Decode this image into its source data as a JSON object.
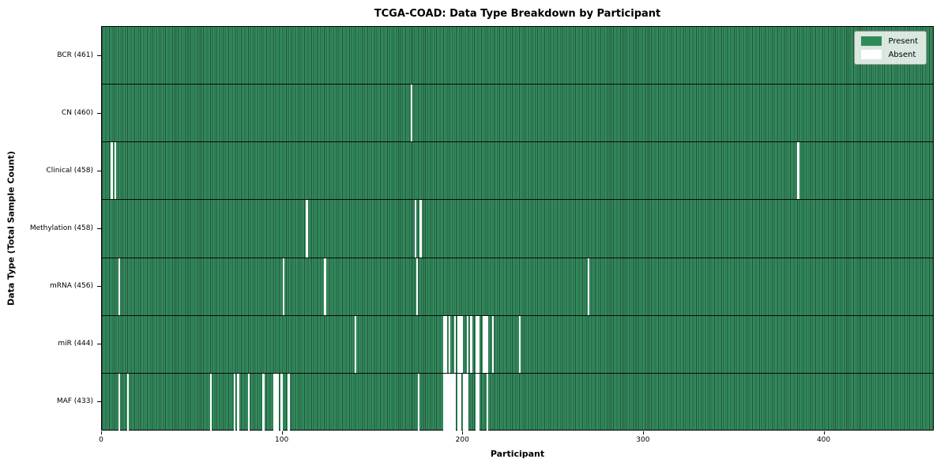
{
  "chart_data": {
    "type": "heatmap",
    "title": "TCGA-COAD: Data Type Breakdown by Participant",
    "xlabel": "Participant",
    "ylabel": "Data Type (Total Sample Count)",
    "x_ticks": [
      0,
      100,
      200,
      300,
      400
    ],
    "x_range": [
      0,
      461
    ],
    "n_participants": 461,
    "legend": [
      {
        "label": "Present",
        "color": "#2e8b57"
      },
      {
        "label": "Absent",
        "color": "#ffffff"
      }
    ],
    "legend_position": "upper right",
    "grid": false,
    "rows": [
      {
        "label": "BCR (461)",
        "data_type": "BCR",
        "total_samples": 461,
        "absent_participants": []
      },
      {
        "label": "CN (460)",
        "data_type": "CN",
        "total_samples": 460,
        "absent_participants": [
          171
        ]
      },
      {
        "label": "Clinical (458)",
        "data_type": "Clinical",
        "total_samples": 458,
        "absent_participants": [
          5,
          7,
          385
        ]
      },
      {
        "label": "Methylation (458)",
        "data_type": "Methylation",
        "total_samples": 458,
        "absent_participants": [
          113,
          173,
          176
        ]
      },
      {
        "label": "mRNA (456)",
        "data_type": "mRNA",
        "total_samples": 456,
        "absent_participants": [
          9,
          100,
          123,
          174,
          269
        ]
      },
      {
        "label": "miR (444)",
        "data_type": "miR",
        "total_samples": 444,
        "absent_participants": [
          140,
          189,
          190,
          192,
          195,
          197,
          198,
          199,
          202,
          204,
          207,
          208,
          211,
          212,
          213,
          216,
          231
        ]
      },
      {
        "label": "MAF (433)",
        "data_type": "MAF",
        "total_samples": 433,
        "absent_participants": [
          9,
          14,
          60,
          73,
          75,
          81,
          89,
          95,
          96,
          97,
          99,
          103,
          175,
          189,
          190,
          191,
          192,
          193,
          194,
          195,
          197,
          198,
          200,
          201,
          202,
          207,
          208,
          213
        ]
      }
    ],
    "colors": {
      "present_fill": "#379464",
      "present_edge": "#1f5136",
      "absent": "#ffffff",
      "background": "#ffffff",
      "axis": "#000000"
    }
  }
}
